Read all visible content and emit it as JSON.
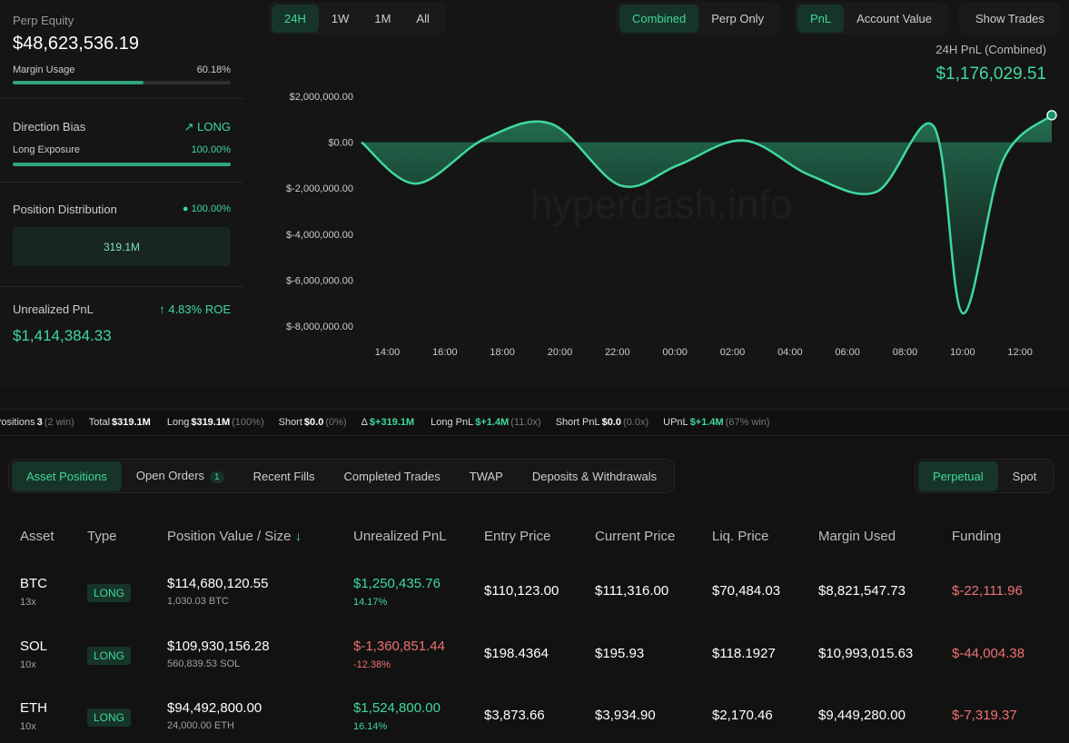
{
  "time_tabs": [
    "24H",
    "1W",
    "1M",
    "All"
  ],
  "view_tabs": [
    "Combined",
    "Perp Only"
  ],
  "metric_tabs": [
    "PnL",
    "Account Value"
  ],
  "show_trades": "Show Trades",
  "overview": {
    "perp_equity": {
      "label": "Perp Equity",
      "value": "$48,623,536.19"
    },
    "margin_usage": {
      "label": "Margin Usage",
      "value": "60.18%"
    },
    "direction_bias": {
      "label": "Direction Bias",
      "value": "LONG"
    },
    "long_exposure": {
      "label": "Long Exposure",
      "value": "100.00%"
    },
    "position_distribution": {
      "label": "Position Distribution",
      "value": "100.00%",
      "bar": "319.1M"
    },
    "unrealized_pnl": {
      "label": "Unrealized PnL",
      "value": "$1,414,384.33",
      "roe": "4.83% ROE"
    }
  },
  "chart_data": {
    "type": "line",
    "title": "24H PnL (Combined)",
    "headline": "$1,176,029.51",
    "watermark": "hyperdash.info",
    "x": [
      13.1,
      15,
      17.4,
      19.7,
      22.1,
      24.1,
      26.4,
      28.7,
      31,
      33,
      34,
      35.4,
      37.1
    ],
    "values": [
      0,
      -1800000,
      160000,
      800000,
      -1880000,
      -1000000,
      80000,
      -1440000,
      -2160000,
      680000,
      -7440000,
      -800000,
      1176029.51
    ],
    "color": "#3fd99c",
    "xlim": [
      13.1,
      37.1
    ],
    "xticks": [
      {
        "value": 14,
        "label": "14:00"
      },
      {
        "value": 16,
        "label": "16:00"
      },
      {
        "value": 18,
        "label": "18:00"
      },
      {
        "value": 20,
        "label": "20:00"
      },
      {
        "value": 22,
        "label": "22:00"
      },
      {
        "value": 24,
        "label": "00:00"
      },
      {
        "value": 26,
        "label": "02:00"
      },
      {
        "value": 28,
        "label": "04:00"
      },
      {
        "value": 30,
        "label": "06:00"
      },
      {
        "value": 32,
        "label": "08:00"
      },
      {
        "value": 34,
        "label": "10:00"
      },
      {
        "value": 36,
        "label": "12:00"
      }
    ],
    "ylim": [
      -8000000,
      2000000
    ],
    "yticks": [
      {
        "value": 2000000,
        "label": "$2,000,000.00"
      },
      {
        "value": 0,
        "label": "$0.00"
      },
      {
        "value": -2000000,
        "label": "$-2,000,000.00"
      },
      {
        "value": -4000000,
        "label": "$-4,000,000.00"
      },
      {
        "value": -6000000,
        "label": "$-6,000,000.00"
      },
      {
        "value": -8000000,
        "label": "$-8,000,000.00"
      }
    ],
    "grid": false
  },
  "summary_bar": [
    {
      "label": "Positions",
      "value": "3",
      "note": "(2 win)"
    },
    {
      "label": "Total",
      "value": "$319.1M"
    },
    {
      "label": "Long",
      "value": "$319.1M",
      "note": "(100%)"
    },
    {
      "label": "Short",
      "value": "$0.0",
      "note": "(0%)"
    },
    {
      "label": "Δ",
      "value": "$+319.1M"
    },
    {
      "label": "Long PnL",
      "value": "$+1.4M",
      "note": "(11.0x)"
    },
    {
      "label": "Short PnL",
      "value": "$0.0",
      "note": "(0.0x)"
    },
    {
      "label": "UPnL",
      "value": "$+1.4M",
      "note": "(67% win)"
    }
  ],
  "position_tabs": [
    {
      "label": "Asset Positions"
    },
    {
      "label": "Open Orders",
      "badge": "1"
    },
    {
      "label": "Recent Fills"
    },
    {
      "label": "Completed Trades"
    },
    {
      "label": "TWAP"
    },
    {
      "label": "Deposits & Withdrawals"
    }
  ],
  "market_tabs": [
    "Perpetual",
    "Spot"
  ],
  "table": {
    "columns": [
      "Asset",
      "Type",
      "Position Value / Size",
      "Unrealized PnL",
      "Entry Price",
      "Current Price",
      "Liq. Price",
      "Margin Used",
      "Funding"
    ],
    "rows": [
      {
        "asset": "BTC",
        "leverage": "13x",
        "type": "LONG",
        "position_value": "$114,680,120.55",
        "size": "1,030.03 BTC",
        "unrealized_pnl": "$1,250,435.76",
        "pnl_pct": "14.17%",
        "entry_price": "$110,123.00",
        "current_price": "$111,316.00",
        "liq_price": "$70,484.03",
        "margin_used": "$8,821,547.73",
        "funding": "$-22,111.96"
      },
      {
        "asset": "SOL",
        "leverage": "10x",
        "type": "LONG",
        "position_value": "$109,930,156.28",
        "size": "560,839.53 SOL",
        "unrealized_pnl": "$-1,360,851.44",
        "pnl_pct": "-12.38%",
        "entry_price": "$198.4364",
        "current_price": "$195.93",
        "liq_price": "$118.1927",
        "margin_used": "$10,993,015.63",
        "funding": "$-44,004.38"
      },
      {
        "asset": "ETH",
        "leverage": "10x",
        "type": "LONG",
        "position_value": "$94,492,800.00",
        "size": "24,000.00 ETH",
        "unrealized_pnl": "$1,524,800.00",
        "pnl_pct": "16.14%",
        "entry_price": "$3,873.66",
        "current_price": "$3,934.90",
        "liq_price": "$2,170.46",
        "margin_used": "$9,449,280.00",
        "funding": "$-7,319.37"
      }
    ]
  }
}
